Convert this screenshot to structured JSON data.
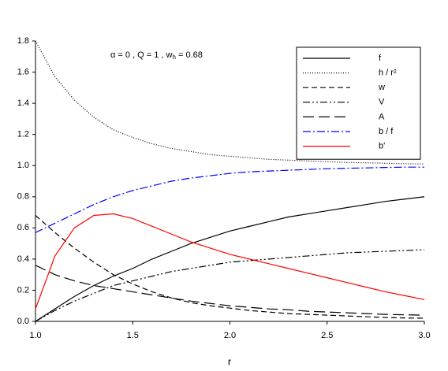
{
  "chart_data": {
    "type": "line",
    "annotation": {
      "text": "α =  0 , Q = 1 , w",
      "sub": "h",
      "tail": " = 0.68"
    },
    "xlabel": "r",
    "x": [
      1,
      1.1,
      1.2,
      1.3,
      1.4,
      1.5,
      1.6,
      1.7,
      1.8,
      1.9,
      2,
      2.1,
      2.2,
      2.3,
      2.4,
      2.5,
      2.6,
      2.7,
      2.8,
      2.9,
      3
    ],
    "series": [
      {
        "name": "f",
        "color": "#000000",
        "style": "solid",
        "values": [
          0,
          0.08,
          0.16,
          0.23,
          0.29,
          0.34,
          0.4,
          0.45,
          0.5,
          0.54,
          0.58,
          0.61,
          0.64,
          0.67,
          0.69,
          0.71,
          0.73,
          0.75,
          0.77,
          0.785,
          0.8
        ]
      },
      {
        "name": "h / r²",
        "color": "#000000",
        "style": "dotted",
        "values": [
          1.8,
          1.57,
          1.42,
          1.31,
          1.23,
          1.18,
          1.14,
          1.11,
          1.09,
          1.07,
          1.06,
          1.05,
          1.04,
          1.035,
          1.03,
          1.025,
          1.02,
          1.018,
          1.015,
          1.012,
          1.01
        ]
      },
      {
        "name": "w",
        "color": "#000000",
        "style": "dashed",
        "values": [
          0.68,
          0.57,
          0.47,
          0.38,
          0.3,
          0.24,
          0.19,
          0.15,
          0.12,
          0.1,
          0.085,
          0.07,
          0.06,
          0.05,
          0.045,
          0.04,
          0.035,
          0.03,
          0.025,
          0.022,
          0.02
        ]
      },
      {
        "name": "V",
        "color": "#000000",
        "style": "dashdotdot",
        "values": [
          0,
          0.07,
          0.13,
          0.18,
          0.23,
          0.26,
          0.29,
          0.32,
          0.34,
          0.36,
          0.38,
          0.39,
          0.4,
          0.41,
          0.42,
          0.43,
          0.44,
          0.445,
          0.45,
          0.455,
          0.46
        ]
      },
      {
        "name": "A",
        "color": "#000000",
        "style": "longdash",
        "values": [
          0.36,
          0.3,
          0.26,
          0.23,
          0.21,
          0.19,
          0.17,
          0.15,
          0.13,
          0.115,
          0.1,
          0.09,
          0.08,
          0.075,
          0.065,
          0.06,
          0.055,
          0.05,
          0.045,
          0.042,
          0.04
        ]
      },
      {
        "name": "b / f",
        "color": "#0000ff",
        "style": "dashdot",
        "values": [
          0.57,
          0.63,
          0.69,
          0.75,
          0.8,
          0.84,
          0.87,
          0.9,
          0.92,
          0.935,
          0.95,
          0.96,
          0.965,
          0.97,
          0.975,
          0.98,
          0.983,
          0.985,
          0.988,
          0.99,
          0.99
        ]
      },
      {
        "name": "b'",
        "color": "#ff0000",
        "style": "solid",
        "values": [
          0.08,
          0.42,
          0.6,
          0.68,
          0.69,
          0.66,
          0.61,
          0.56,
          0.51,
          0.47,
          0.43,
          0.4,
          0.37,
          0.34,
          0.31,
          0.28,
          0.25,
          0.22,
          0.19,
          0.165,
          0.14
        ]
      }
    ],
    "xlim": [
      1,
      3
    ],
    "xticks": [
      {
        "value": 1,
        "label": "1.0"
      },
      1.5,
      {
        "value": 2,
        "label": "2.0"
      },
      2.5,
      {
        "value": 3,
        "label": "3.0"
      }
    ],
    "ylim": [
      0,
      1.8
    ],
    "yticks": [
      {
        "value": 0,
        "label": "0.0"
      },
      0.2,
      0.4,
      0.6,
      0.8,
      {
        "value": 1,
        "label": "1.0"
      },
      1.2,
      1.4,
      1.6,
      1.8
    ],
    "legend": "upper right"
  }
}
